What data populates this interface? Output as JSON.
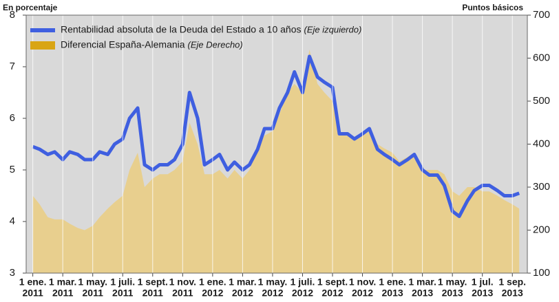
{
  "chart_data": {
    "type": "line",
    "y_axis_title": "En porcentaje",
    "y2_axis_title": "Puntos básicos",
    "ylim": [
      3,
      8
    ],
    "yticks": [
      3,
      4,
      5,
      6,
      7,
      8
    ],
    "y2lim": [
      100,
      700
    ],
    "y2ticks": [
      100,
      200,
      300,
      400,
      500,
      600,
      700
    ],
    "xlim": [
      "2010-12-18",
      "2013-10-01"
    ],
    "xticks": [
      {
        "value": "2011-01-01",
        "label": [
          "1 ene.",
          "2011"
        ]
      },
      {
        "value": "2011-03-01",
        "label": [
          "1 mar.",
          "2011"
        ]
      },
      {
        "value": "2011-05-01",
        "label": [
          "1 may.",
          "2011"
        ]
      },
      {
        "value": "2011-07-01",
        "label": [
          "1 juli.",
          "2011"
        ]
      },
      {
        "value": "2011-09-01",
        "label": [
          "1 sept.",
          "2011"
        ]
      },
      {
        "value": "2011-11-01",
        "label": [
          "1 nov.",
          "2011"
        ]
      },
      {
        "value": "2012-01-01",
        "label": [
          "1 ene.",
          "2012"
        ]
      },
      {
        "value": "2012-03-01",
        "label": [
          "1 mar.",
          "2012"
        ]
      },
      {
        "value": "2012-05-01",
        "label": [
          "1 may.",
          "2012"
        ]
      },
      {
        "value": "2012-07-01",
        "label": [
          "1 juli.",
          "2012"
        ]
      },
      {
        "value": "2012-09-01",
        "label": [
          "1 sept.",
          "2012"
        ]
      },
      {
        "value": "2012-11-01",
        "label": [
          "1 nov.",
          "2012"
        ]
      },
      {
        "value": "2013-01-01",
        "label": [
          "1 ene.",
          "2013"
        ]
      },
      {
        "value": "2013-03-01",
        "label": [
          "1 mar.",
          "2013"
        ]
      },
      {
        "value": "2013-05-01",
        "label": [
          "1 may.",
          "2013"
        ]
      },
      {
        "value": "2013-07-01",
        "label": [
          "1 jul.",
          "2013"
        ]
      },
      {
        "value": "2013-09-01",
        "label": [
          "1 sep.",
          "2013"
        ]
      }
    ],
    "grid": true,
    "x": [
      "2011-01-01",
      "2011-01-15",
      "2011-02-01",
      "2011-02-15",
      "2011-03-01",
      "2011-03-15",
      "2011-04-01",
      "2011-04-15",
      "2011-05-01",
      "2011-05-15",
      "2011-06-01",
      "2011-06-15",
      "2011-07-01",
      "2011-07-15",
      "2011-08-01",
      "2011-08-15",
      "2011-09-01",
      "2011-09-15",
      "2011-10-01",
      "2011-10-15",
      "2011-11-01",
      "2011-11-15",
      "2011-12-01",
      "2011-12-15",
      "2012-01-01",
      "2012-01-15",
      "2012-02-01",
      "2012-02-15",
      "2012-03-01",
      "2012-03-15",
      "2012-04-01",
      "2012-04-15",
      "2012-05-01",
      "2012-05-15",
      "2012-06-01",
      "2012-06-15",
      "2012-07-01",
      "2012-07-15",
      "2012-08-01",
      "2012-08-15",
      "2012-09-01",
      "2012-09-15",
      "2012-10-01",
      "2012-10-15",
      "2012-11-01",
      "2012-11-15",
      "2012-12-01",
      "2012-12-15",
      "2013-01-01",
      "2013-01-15",
      "2013-02-01",
      "2013-02-15",
      "2013-03-01",
      "2013-03-15",
      "2013-04-01",
      "2013-04-15",
      "2013-05-01",
      "2013-05-15",
      "2013-06-01",
      "2013-06-15",
      "2013-07-01",
      "2013-07-15",
      "2013-08-01",
      "2013-08-15",
      "2013-09-01",
      "2013-09-15"
    ],
    "series": [
      {
        "name": "Rentabilidad absoluta de la Deuda del Estado a 10 años",
        "note": "(Eje izquierdo)",
        "kind": "line",
        "axis": "y",
        "color": "#3f5fe0",
        "values": [
          5.45,
          5.4,
          5.3,
          5.35,
          5.2,
          5.35,
          5.3,
          5.2,
          5.2,
          5.35,
          5.3,
          5.5,
          5.6,
          6.0,
          6.2,
          5.1,
          5.0,
          5.1,
          5.1,
          5.2,
          5.5,
          6.5,
          6.0,
          5.1,
          5.2,
          5.3,
          5.0,
          5.15,
          5.0,
          5.1,
          5.4,
          5.8,
          5.8,
          6.2,
          6.5,
          6.9,
          6.5,
          7.2,
          6.8,
          6.7,
          6.6,
          5.7,
          5.7,
          5.6,
          5.7,
          5.8,
          5.4,
          5.3,
          5.2,
          5.1,
          5.2,
          5.3,
          5.0,
          4.9,
          4.9,
          4.7,
          4.2,
          4.1,
          4.4,
          4.6,
          4.7,
          4.7,
          4.6,
          4.5,
          4.5,
          4.55
        ]
      },
      {
        "name": "Diferencial España-Alemania",
        "note": "(Eje Derecho)",
        "kind": "area",
        "axis": "y2",
        "color": "#e8cf8e",
        "legend_color": "#d9a514",
        "values": [
          280,
          260,
          230,
          225,
          225,
          215,
          205,
          200,
          210,
          230,
          250,
          265,
          280,
          340,
          380,
          300,
          320,
          330,
          330,
          340,
          360,
          450,
          400,
          330,
          330,
          340,
          320,
          340,
          320,
          340,
          390,
          420,
          430,
          470,
          520,
          540,
          520,
          620,
          540,
          520,
          500,
          430,
          420,
          410,
          420,
          430,
          400,
          390,
          380,
          360,
          370,
          380,
          340,
          340,
          340,
          330,
          290,
          280,
          300,
          300,
          290,
          290,
          280,
          270,
          260,
          250
        ]
      }
    ]
  }
}
